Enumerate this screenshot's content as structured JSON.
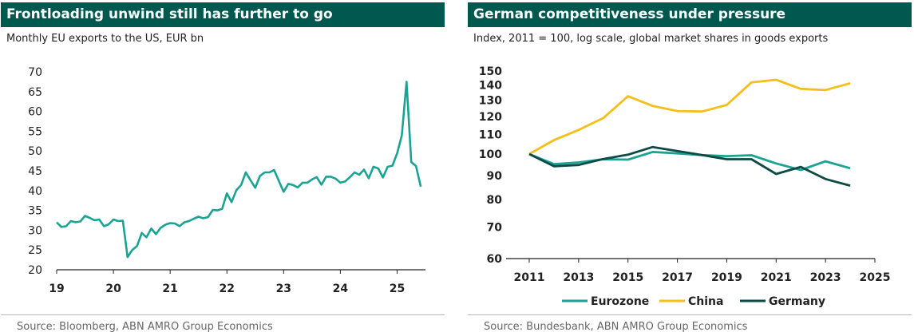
{
  "left": {
    "title": "Frontloading unwind still has further to go",
    "subtitle": "Monthly EU exports to the US, EUR bn",
    "source": "Source: Bloomberg, ABN AMRO Group Economics"
  },
  "right": {
    "title": "German competitiveness under pressure",
    "subtitle": "Index, 2011 = 100, log scale, global market shares in goods exports",
    "source": "Source: Bundesbank, ABN AMRO Group Economics"
  },
  "colors": {
    "header_bg": "#00584f",
    "eurozone": "#1aa393",
    "china": "#f5bf1b",
    "germany": "#0d4a45"
  },
  "chart_data": [
    {
      "type": "line",
      "title": "Frontloading unwind still has further to go",
      "subtitle": "Monthly EU exports to the US, EUR bn",
      "x_tick_labels": [
        "19",
        "20",
        "21",
        "22",
        "23",
        "24",
        "25"
      ],
      "x_ticks": [
        2019,
        2020,
        2021,
        2022,
        2023,
        2024,
        2025
      ],
      "y_ticks": [
        20,
        25,
        30,
        35,
        40,
        45,
        50,
        55,
        60,
        65,
        70
      ],
      "xlim": [
        2019,
        2025.5
      ],
      "ylim": [
        20,
        70
      ],
      "grid": false,
      "series": [
        {
          "color": "#1aa393",
          "x": [
            2019.0,
            2019.083,
            2019.167,
            2019.25,
            2019.333,
            2019.417,
            2019.5,
            2019.583,
            2019.667,
            2019.75,
            2019.833,
            2019.917,
            2020.0,
            2020.083,
            2020.167,
            2020.25,
            2020.333,
            2020.417,
            2020.5,
            2020.583,
            2020.667,
            2020.75,
            2020.833,
            2020.917,
            2021.0,
            2021.083,
            2021.167,
            2021.25,
            2021.333,
            2021.417,
            2021.5,
            2021.583,
            2021.667,
            2021.75,
            2021.833,
            2021.917,
            2022.0,
            2022.083,
            2022.167,
            2022.25,
            2022.333,
            2022.417,
            2022.5,
            2022.583,
            2022.667,
            2022.75,
            2022.833,
            2022.917,
            2023.0,
            2023.083,
            2023.167,
            2023.25,
            2023.333,
            2023.417,
            2023.5,
            2023.583,
            2023.667,
            2023.75,
            2023.833,
            2023.917,
            2024.0,
            2024.083,
            2024.167,
            2024.25,
            2024.333,
            2024.417,
            2024.5,
            2024.583,
            2024.667,
            2024.75,
            2024.833,
            2024.917,
            2025.0,
            2025.083,
            2025.167,
            2025.25,
            2025.333,
            2025.417
          ],
          "y": [
            32,
            30.8,
            31.0,
            32.3,
            32.0,
            32.2,
            33.6,
            33.1,
            32.5,
            32.7,
            31.0,
            31.5,
            32.7,
            32.3,
            32.4,
            23.2,
            25.0,
            26.0,
            29.3,
            28.2,
            30.4,
            29.0,
            30.6,
            31.4,
            31.8,
            31.7,
            31.0,
            32.0,
            32.3,
            32.9,
            33.4,
            33.0,
            33.3,
            35.1,
            35.0,
            35.4,
            39.3,
            37.1,
            40.1,
            41.4,
            44.6,
            42.6,
            40.7,
            43.7,
            44.6,
            44.6,
            45.2,
            42.4,
            39.7,
            41.7,
            41.4,
            40.8,
            42.0,
            42.0,
            42.8,
            43.4,
            41.5,
            43.5,
            43.5,
            43.0,
            42.0,
            42.3,
            43.4,
            44.6,
            44.0,
            45.3,
            43.1,
            46.0,
            45.6,
            43.3,
            46.0,
            46.3,
            49.4,
            54.0,
            67.5,
            47.2,
            46.2,
            41.0
          ]
        }
      ]
    },
    {
      "type": "line",
      "title": "German competitiveness under pressure",
      "subtitle": "Index, 2011 = 100, log scale, global market shares in goods exports",
      "log_scale": true,
      "x_ticks": [
        2011,
        2013,
        2015,
        2017,
        2019,
        2021,
        2023,
        2025
      ],
      "y_ticks": [
        60,
        70,
        80,
        90,
        100,
        110,
        120,
        130,
        140,
        150
      ],
      "xlim": [
        2011,
        2025
      ],
      "ylim": [
        60,
        150
      ],
      "grid": false,
      "legend": "bottom",
      "x": [
        2011,
        2012,
        2013,
        2014,
        2015,
        2016,
        2017,
        2018,
        2019,
        2020,
        2021,
        2022,
        2023,
        2024
      ],
      "series": [
        {
          "name": "Eurozone",
          "color": "#1aa393",
          "values": [
            100,
            95.2,
            96.0,
            97.5,
            97.3,
            101.0,
            100.3,
            99.5,
            99.0,
            99.4,
            95.5,
            92.5,
            96.5,
            93.3
          ]
        },
        {
          "name": "China",
          "color": "#f5bf1b",
          "values": [
            100,
            107.0,
            112.5,
            119.2,
            132.6,
            126.5,
            123.4,
            123.1,
            127.1,
            141.9,
            143.7,
            137.5,
            136.7,
            141.3
          ]
        },
        {
          "name": "Germany",
          "color": "#0d4a45",
          "values": [
            100,
            94.2,
            94.8,
            97.6,
            99.7,
            103.5,
            101.5,
            99.5,
            97.5,
            97.5,
            90.7,
            93.9,
            88.5,
            85.7
          ]
        }
      ]
    }
  ]
}
